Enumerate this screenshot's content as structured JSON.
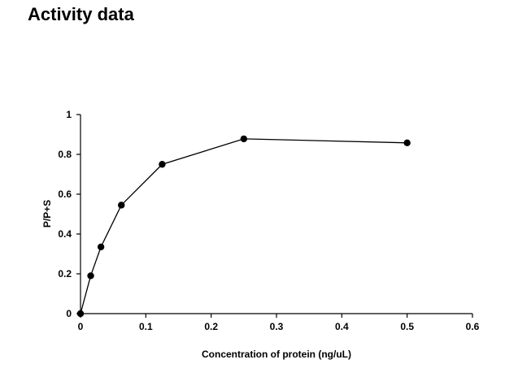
{
  "page": {
    "title": "Activity data"
  },
  "chart_data": {
    "type": "line",
    "title": "",
    "xlabel": "Concentration of protein (ng/uL)",
    "ylabel": "P/P+S",
    "xlim": [
      0,
      0.6
    ],
    "ylim": [
      0,
      1
    ],
    "x_ticks": [
      0,
      0.1,
      0.2,
      0.3,
      0.4,
      0.5,
      0.6
    ],
    "x_tick_labels": [
      "0",
      "0.1",
      "0.2",
      "0.3",
      "0.4",
      "0.5",
      "0.6"
    ],
    "y_ticks": [
      0,
      0.2,
      0.4,
      0.6,
      0.8,
      1
    ],
    "y_tick_labels": [
      "0",
      "0.2",
      "0.4",
      "0.6",
      "0.8",
      "1"
    ],
    "grid": false,
    "legend": "none",
    "series": [
      {
        "x": [
          0,
          0.0156,
          0.03125,
          0.0625,
          0.125,
          0.25,
          0.5
        ],
        "y": [
          0,
          0.19,
          0.335,
          0.545,
          0.75,
          0.878,
          0.858
        ],
        "color": "#000000",
        "marker": "circle"
      }
    ]
  }
}
